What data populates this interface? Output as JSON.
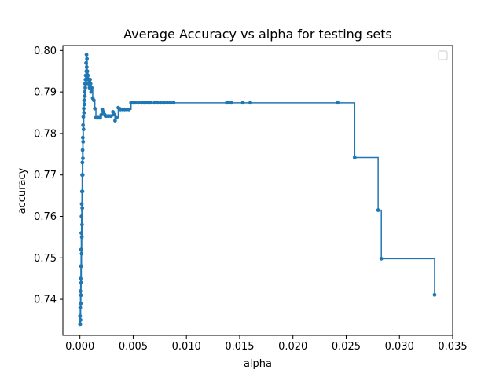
{
  "chart_data": {
    "type": "line",
    "title": "Average Accuracy vs alpha for testing sets",
    "xlabel": "alpha",
    "ylabel": "accuracy",
    "xlim": [
      -0.0016,
      0.035
    ],
    "ylim": [
      0.7313,
      0.8012
    ],
    "xticks": [
      "0.000",
      "0.005",
      "0.010",
      "0.015",
      "0.020",
      "0.025",
      "0.030",
      "0.035"
    ],
    "xtick_values": [
      0,
      0.005,
      0.01,
      0.015,
      0.02,
      0.025,
      0.03,
      0.035
    ],
    "yticks": [
      "0.74",
      "0.75",
      "0.76",
      "0.77",
      "0.78",
      "0.79",
      "0.80"
    ],
    "ytick_values": [
      0.74,
      0.75,
      0.76,
      0.77,
      0.78,
      0.79,
      0.8
    ],
    "grid": false,
    "legend": "top-right (empty)",
    "drawstyle": "steps-post",
    "marker": "circle",
    "series": [
      {
        "color": "#1f77b4",
        "x": [
          0.0,
          1e-05,
          2e-05,
          3e-05,
          4e-05,
          5e-05,
          6e-05,
          7e-05,
          8e-05,
          9e-05,
          0.0001,
          0.00011,
          0.00012,
          0.00013,
          0.00014,
          0.00015,
          0.00016,
          0.00017,
          0.00018,
          0.00019,
          0.0002,
          0.00021,
          0.00022,
          0.00023,
          0.00024,
          0.00025,
          0.00026,
          0.00027,
          0.00028,
          0.00029,
          0.0003,
          0.00032,
          0.00034,
          0.00036,
          0.00038,
          0.0004,
          0.00042,
          0.00044,
          0.00046,
          0.00048,
          0.0005,
          0.00052,
          0.00054,
          0.00056,
          0.00058,
          0.0006,
          0.00062,
          0.00064,
          0.00066,
          0.00068,
          0.0007,
          0.00075,
          0.0008,
          0.00085,
          0.0009,
          0.00095,
          0.001,
          0.00105,
          0.0011,
          0.0012,
          0.0013,
          0.0014,
          0.0015,
          0.0016,
          0.0017,
          0.0018,
          0.0019,
          0.002,
          0.0021,
          0.0022,
          0.0023,
          0.0024,
          0.0025,
          0.0027,
          0.0029,
          0.0031,
          0.0032,
          0.0033,
          0.0034,
          0.0036,
          0.0038,
          0.004,
          0.0042,
          0.0044,
          0.0046,
          0.0048,
          0.005,
          0.0052,
          0.0055,
          0.0058,
          0.006,
          0.0062,
          0.0064,
          0.0066,
          0.007,
          0.0073,
          0.0076,
          0.0079,
          0.0082,
          0.0085,
          0.0088,
          0.0138,
          0.014,
          0.0142,
          0.0153,
          0.016,
          0.0242,
          0.0258,
          0.028,
          0.0283,
          0.0333
        ],
        "y": [
          0.734,
          0.736,
          0.734,
          0.738,
          0.734,
          0.742,
          0.735,
          0.745,
          0.739,
          0.748,
          0.741,
          0.752,
          0.744,
          0.756,
          0.748,
          0.76,
          0.751,
          0.763,
          0.755,
          0.766,
          0.758,
          0.77,
          0.762,
          0.773,
          0.766,
          0.776,
          0.77,
          0.779,
          0.774,
          0.782,
          0.778,
          0.784,
          0.781,
          0.786,
          0.785,
          0.788,
          0.787,
          0.79,
          0.789,
          0.792,
          0.791,
          0.793,
          0.794,
          0.792,
          0.797,
          0.795,
          0.799,
          0.796,
          0.798,
          0.793,
          0.795,
          0.794,
          0.792,
          0.793,
          0.791,
          0.793,
          0.792,
          0.79,
          0.791,
          0.7885,
          0.788,
          0.786,
          0.7838,
          0.7838,
          0.7838,
          0.7838,
          0.7838,
          0.7845,
          0.7858,
          0.7852,
          0.7846,
          0.7842,
          0.7842,
          0.7842,
          0.7842,
          0.7852,
          0.7846,
          0.7831,
          0.7838,
          0.7862,
          0.7858,
          0.7858,
          0.7858,
          0.7858,
          0.7858,
          0.7874,
          0.7874,
          0.7874,
          0.7874,
          0.7874,
          0.7874,
          0.7874,
          0.7874,
          0.7874,
          0.7874,
          0.7874,
          0.7874,
          0.7874,
          0.7874,
          0.7874,
          0.7874,
          0.7874,
          0.7874,
          0.7874,
          0.7874,
          0.7874,
          0.7874,
          0.7742,
          0.7615,
          0.7498,
          0.7411
        ]
      }
    ]
  }
}
